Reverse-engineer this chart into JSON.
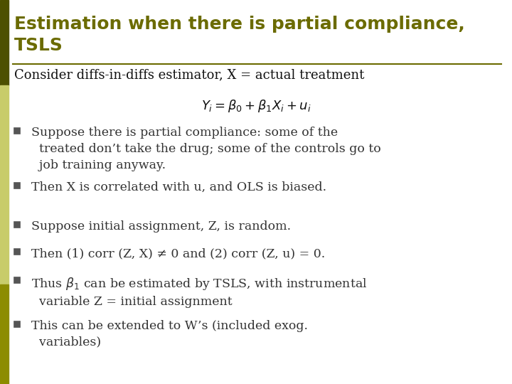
{
  "title_line1": "Estimation when there is partial compliance,",
  "title_line2": "TSLS",
  "title_color": "#6b6b00",
  "title_fontsize": 18,
  "bg_color": "#ffffff",
  "left_bar_top_color": "#4d5000",
  "left_bar_mid_color": "#c8cc6a",
  "left_bar_bot_color": "#8c8c00",
  "separator_color": "#6b6b00",
  "subheader": "Consider diffs-in-diffs estimator, X = actual treatment",
  "subheader_fontsize": 13,
  "equation": "$Y_i = \\beta_0 + \\beta_1 X_i + u_i$",
  "equation_fontsize": 13,
  "bullet_fontsize": 12.5,
  "bullet_color": "#333333",
  "bullet_square_color": "#555555",
  "bullets": [
    "Suppose there is partial compliance: some of the\n  treated don’t take the drug; some of the controls go to\n  job training anyway.",
    "Then X is correlated with u, and OLS is biased.",
    "Suppose initial assignment, Z, is random.",
    "Then (1) corr (Z, X) ≠ 0 and (2) corr (Z, u) = 0.",
    "Thus $\\beta_1$ can be estimated by TSLS, with instrumental\n  variable Z = initial assignment",
    "This can be extended to W’s (included exog.\n  variables)"
  ]
}
